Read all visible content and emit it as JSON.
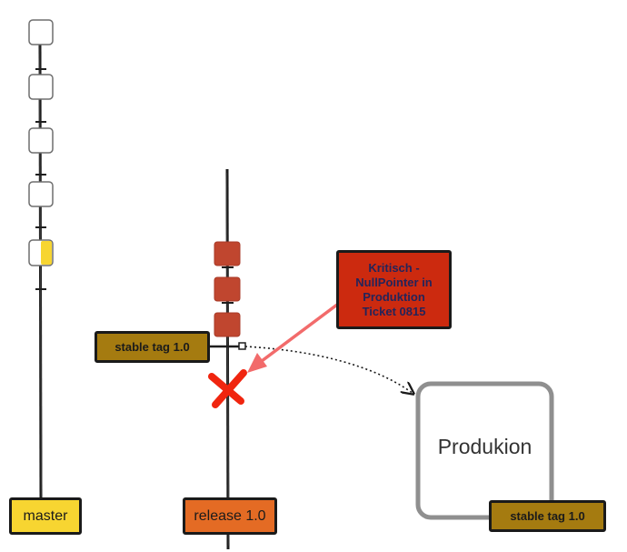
{
  "colors": {
    "master_fill": "#f7d531",
    "release_fill": "#e46b24",
    "stable_tag_fill": "#a57b10",
    "critical_fill": "#cc2a0f",
    "release_commit_fill": "#c0462f",
    "arrow_red": "#f26b6b",
    "x_mark": "#f0250f",
    "production_border": "#8f8f8f"
  },
  "master": {
    "label": "master",
    "commits": [
      {
        "state": "empty"
      },
      {
        "state": "empty"
      },
      {
        "state": "empty"
      },
      {
        "state": "empty"
      },
      {
        "state": "half-yellow"
      }
    ]
  },
  "release": {
    "label": "release 1.0",
    "commits": [
      {
        "state": "red"
      },
      {
        "state": "red"
      },
      {
        "state": "red"
      }
    ],
    "defect_marker": "x-mark"
  },
  "stable_tag_left": {
    "label": "stable tag 1.0"
  },
  "stable_tag_right": {
    "label": "stable tag 1.0"
  },
  "critical": {
    "label": "Kritisch -\nNullPointer in\nProduktion\nTicket 0815"
  },
  "production": {
    "label": "Produkion"
  }
}
